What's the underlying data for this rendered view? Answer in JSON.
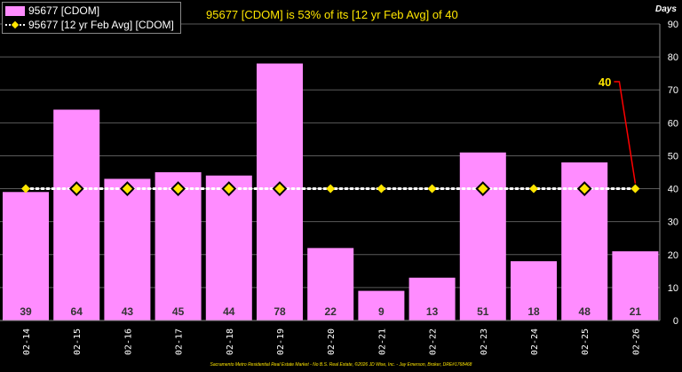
{
  "title": "95677 [CDOM] is 53% of its [12 yr Feb Avg] of 40",
  "axis_unit": "Days",
  "footer": "Sacramento Metro Residential Real Estate Market - No B.S. Real Estate, ©2026 JD Wise, Inc. - Jay Emerson, Broker, DRE#1768468",
  "legend": [
    {
      "label": "95677 [CDOM]",
      "color": "#ff8cff"
    },
    {
      "label": "95677 [12 yr Feb Avg] [CDOM]",
      "color": "#ffe600"
    }
  ],
  "callout_label": "40",
  "chart_data": {
    "type": "bar",
    "categories": [
      "02-14",
      "02-15",
      "02-16",
      "02-17",
      "02-18",
      "02-19",
      "02-20",
      "02-21",
      "02-22",
      "02-23",
      "02-24",
      "02-25",
      "02-26"
    ],
    "series": [
      {
        "name": "95677 [CDOM]",
        "type": "bar",
        "values": [
          39,
          64,
          43,
          45,
          44,
          78,
          22,
          9,
          13,
          51,
          18,
          48,
          21
        ]
      },
      {
        "name": "95677 [12 yr Feb Avg] [CDOM]",
        "type": "line",
        "values": [
          40,
          40,
          40,
          40,
          40,
          40,
          40,
          40,
          40,
          40,
          40,
          40,
          40
        ]
      }
    ],
    "ylim": [
      0,
      90
    ],
    "yticks": [
      0,
      10,
      20,
      30,
      40,
      50,
      60,
      70,
      80,
      90
    ],
    "grid": true,
    "legend_position": "top-left",
    "colors": {
      "bar": "#ff8cff",
      "avg_line": "#ffffff",
      "avg_marker": "#ffe600",
      "callout": "#ff0000"
    }
  }
}
